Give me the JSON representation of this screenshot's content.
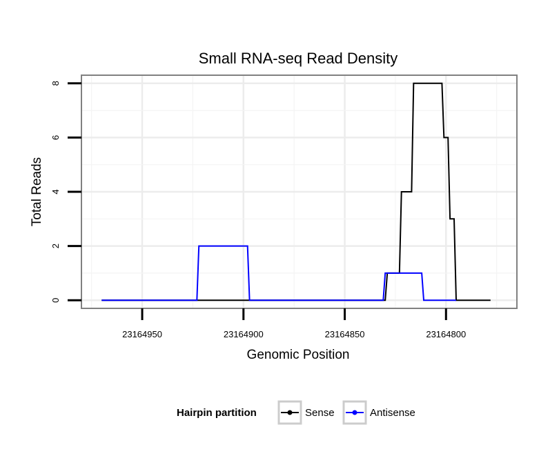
{
  "chart_data": {
    "type": "line",
    "title": "Small RNA-seq Read Density",
    "xlabel": "Genomic Position",
    "ylabel": "Total Reads",
    "x_reversed": true,
    "xlim": [
      23164980,
      23164765
    ],
    "ylim": [
      -0.3,
      8.3
    ],
    "xticks": [
      23164950,
      23164900,
      23164850,
      23164800
    ],
    "xtick_labels": [
      "23164950",
      "23164900",
      "23164850",
      "23164800"
    ],
    "yticks": [
      0,
      2,
      4,
      6,
      8
    ],
    "ytick_labels": [
      "0",
      "2",
      "4",
      "6",
      "8"
    ],
    "grid": true,
    "legend": {
      "title": "Hairpin partition",
      "position": "bottom",
      "entries": [
        {
          "name": "Sense",
          "color": "#000000"
        },
        {
          "name": "Antisense",
          "color": "#0000ff"
        }
      ]
    },
    "series": [
      {
        "name": "Sense",
        "color": "#000000",
        "x": [
          23164970,
          23164830,
          23164829,
          23164823,
          23164822,
          23164817,
          23164816,
          23164802,
          23164801,
          23164799,
          23164798,
          23164796,
          23164795,
          23164778
        ],
        "y": [
          0,
          0,
          1,
          1,
          4,
          4,
          8,
          8,
          6,
          6,
          3,
          3,
          0,
          0
        ]
      },
      {
        "name": "Antisense",
        "color": "#0000ff",
        "x": [
          23164970,
          23164923,
          23164922,
          23164898,
          23164897,
          23164831,
          23164830,
          23164812,
          23164811,
          23164795
        ],
        "y": [
          0,
          0,
          2,
          2,
          0,
          0,
          1,
          1,
          0,
          0
        ]
      }
    ]
  }
}
